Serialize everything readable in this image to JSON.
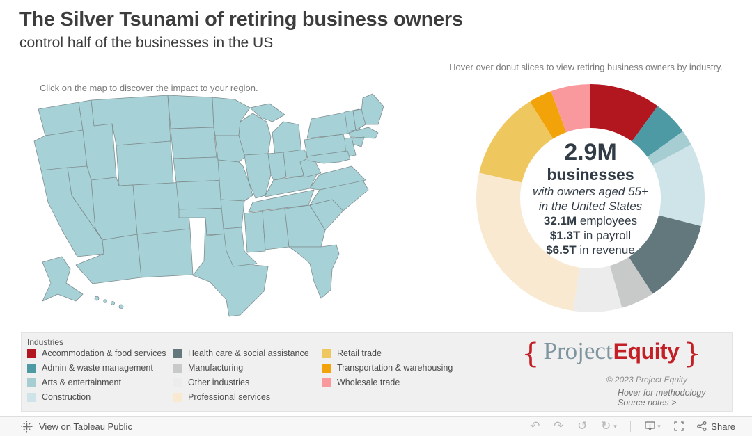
{
  "header": {
    "title": "The Silver Tsunami of retiring business owners",
    "subtitle": "control half of the businesses in the US"
  },
  "legend": {
    "title": "Industries"
  },
  "chart_data": [
    {
      "type": "pie",
      "subtype": "donut",
      "hint": "Hover over donut slices to view retiring business owners by industry.",
      "start_angle_deg": 0,
      "direction": "clockwise",
      "order": "alphabetical",
      "center": {
        "value": "2.9M",
        "unit": "businesses",
        "note1": "with owners aged 55+",
        "note2": "in the United States",
        "stats": [
          {
            "num": "32.1M",
            "rest": " employees"
          },
          {
            "num": "$1.3T",
            "rest": " in payroll"
          },
          {
            "num": "$6.5T",
            "rest": " in revenue"
          }
        ]
      },
      "segments": [
        {
          "label": "Accommodation & food services",
          "value": 10.0,
          "color": "#b2161f"
        },
        {
          "label": "Admin & waste management",
          "value": 5.0,
          "color": "#4d99a4"
        },
        {
          "label": "Arts & entertainment",
          "value": 2.2,
          "color": "#a5cdd2"
        },
        {
          "label": "Construction",
          "value": 11.7,
          "color": "#cfe4e9"
        },
        {
          "label": "Health care & social assistance",
          "value": 11.9,
          "color": "#62787d"
        },
        {
          "label": "Manufacturing",
          "value": 4.7,
          "color": "#c8caca"
        },
        {
          "label": "Other industries",
          "value": 6.9,
          "color": "#ececec"
        },
        {
          "label": "Professional services",
          "value": 26.1,
          "color": "#f9e9d1"
        },
        {
          "label": "Retail trade",
          "value": 12.5,
          "color": "#eec75e"
        },
        {
          "label": "Transportation & warehousing",
          "value": 3.3,
          "color": "#f2a30a"
        },
        {
          "label": "Wholesale trade",
          "value": 5.6,
          "color": "#f9999e"
        }
      ]
    },
    {
      "type": "heatmap",
      "subtype": "us-state-choropleth",
      "hint": "Click on the map to discover the impact to your region.",
      "default_color": "#a6d1d6",
      "state_colors": {
        "ID": "#cfe5e9",
        "ND": "#cfe5e9",
        "NV": "#c6dfe4",
        "CO": "#c6dfe4",
        "NY": "#c6dfe4",
        "GA": "#cde4e8",
        "UT": "#f2f2f2",
        "NM": "#7db9c4",
        "KS": "#98c9d1",
        "OH": "#8fc5cd",
        "PA": "#92c6ce",
        "WV": "#8cc2cb",
        "VT": "#88c0ca",
        "CT": "#82bdc7",
        "ME": "#99c9d1",
        "TN": "#9ccbd2",
        "MS": "#9dccd3",
        "AL": "#9dccd3",
        "IL": "#9cccd3",
        "MO": "#a2cfd5"
      }
    }
  ],
  "branding": {
    "logo": {
      "open_brace": "{",
      "word1": "Project",
      "word2": "Equity",
      "close_brace": "}"
    },
    "copyright": "© 2023 Project Equity",
    "methodology_link": "Hover for methodology",
    "source_link": "Source notes >",
    "accent_red": "#c32026",
    "name_gray": "#7e949f"
  },
  "toolbar": {
    "view_label": "View on Tableau Public",
    "share_label": "Share"
  }
}
